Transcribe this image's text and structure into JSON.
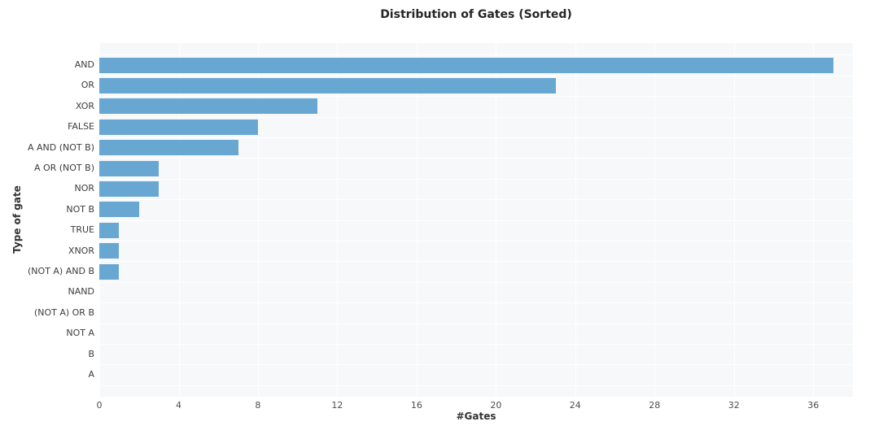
{
  "chart_data": {
    "type": "bar",
    "orientation": "horizontal",
    "title": "Distribution of Gates (Sorted)",
    "xlabel": "#Gates",
    "ylabel": "Type of gate",
    "categories": [
      "AND",
      "OR",
      "XOR",
      "FALSE",
      "A AND (NOT B)",
      "A OR (NOT B)",
      "NOR",
      "NOT B",
      "TRUE",
      "XNOR",
      "(NOT A) AND B",
      "NAND",
      "(NOT A) OR B",
      "NOT A",
      "B",
      "A"
    ],
    "values": [
      37,
      23,
      11,
      8,
      7,
      3,
      3,
      2,
      1,
      1,
      1,
      0,
      0,
      0,
      0,
      0
    ],
    "xticks": [
      0,
      4,
      8,
      12,
      16,
      20,
      24,
      28,
      32,
      36
    ],
    "xlim": [
      0,
      38
    ],
    "grid": true,
    "legend": "none",
    "colors": {
      "bar": "#69a7d3",
      "plot_background": "#f6f8fa",
      "grid": "#ffffff",
      "title_text": "#262626",
      "tick_text": "#4d4d4d"
    }
  }
}
